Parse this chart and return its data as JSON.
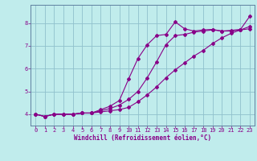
{
  "xlabel": "Windchill (Refroidissement éolien,°C)",
  "background_color": "#c0ecec",
  "grid_color": "#90c0cc",
  "line_color": "#880088",
  "spine_color": "#6080a0",
  "xlim": [
    -0.5,
    23.5
  ],
  "ylim": [
    3.5,
    8.8
  ],
  "xticks": [
    0,
    1,
    2,
    3,
    4,
    5,
    6,
    7,
    8,
    9,
    10,
    11,
    12,
    13,
    14,
    15,
    16,
    17,
    18,
    19,
    20,
    21,
    22,
    23
  ],
  "yticks": [
    4,
    5,
    6,
    7,
    8
  ],
  "series": [
    [
      4.0,
      3.9,
      4.0,
      4.0,
      4.0,
      4.05,
      4.05,
      4.1,
      4.15,
      4.2,
      4.3,
      4.55,
      4.85,
      5.2,
      5.6,
      5.95,
      6.25,
      6.55,
      6.8,
      7.1,
      7.35,
      7.55,
      7.7,
      7.85
    ],
    [
      4.0,
      3.9,
      4.0,
      4.0,
      4.0,
      4.05,
      4.05,
      4.15,
      4.25,
      4.4,
      4.65,
      5.0,
      5.6,
      6.3,
      7.05,
      7.45,
      7.5,
      7.6,
      7.65,
      7.7,
      7.65,
      7.65,
      7.7,
      7.75
    ],
    [
      4.0,
      3.9,
      4.0,
      4.0,
      4.0,
      4.05,
      4.05,
      4.2,
      4.35,
      4.6,
      5.55,
      6.45,
      7.05,
      7.45,
      7.5,
      8.05,
      7.75,
      7.65,
      7.7,
      7.72,
      7.65,
      7.68,
      7.72,
      8.3
    ]
  ]
}
